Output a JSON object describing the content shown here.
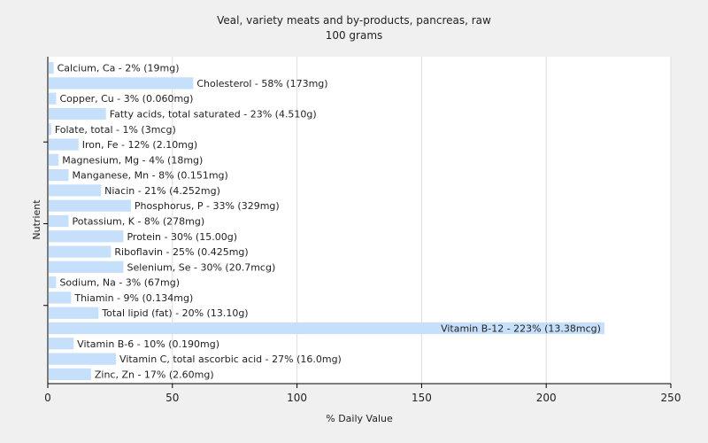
{
  "chart_data": {
    "type": "bar",
    "orientation": "horizontal",
    "title": "Veal, variety meats and by-products, pancreas, raw",
    "subtitle": "100 grams",
    "xlabel": "% Daily Value",
    "ylabel": "Nutrient",
    "xlim": [
      0,
      250
    ],
    "xticks": [
      0,
      50,
      100,
      150,
      200,
      250
    ],
    "grid": true,
    "bar_color": "#c6e0fb",
    "categories": [
      "Calcium, Ca - 2% (19mg)",
      "Cholesterol - 58% (173mg)",
      "Copper, Cu - 3% (0.060mg)",
      "Fatty acids, total saturated - 23% (4.510g)",
      "Folate, total - 1% (3mcg)",
      "Iron, Fe - 12% (2.10mg)",
      "Magnesium, Mg - 4% (18mg)",
      "Manganese, Mn - 8% (0.151mg)",
      "Niacin - 21% (4.252mg)",
      "Phosphorus, P - 33% (329mg)",
      "Potassium, K - 8% (278mg)",
      "Protein - 30% (15.00g)",
      "Riboflavin - 25% (0.425mg)",
      "Selenium, Se - 30% (20.7mcg)",
      "Sodium, Na - 3% (67mg)",
      "Thiamin - 9% (0.134mg)",
      "Total lipid (fat) - 20% (13.10g)",
      "Vitamin B-12 - 223% (13.38mcg)",
      "Vitamin B-6 - 10% (0.190mg)",
      "Vitamin C, total ascorbic acid - 27% (16.0mg)",
      "Zinc, Zn - 17% (2.60mg)"
    ],
    "values": [
      2,
      58,
      3,
      23,
      1,
      12,
      4,
      8,
      21,
      33,
      8,
      30,
      25,
      30,
      3,
      9,
      20,
      223,
      10,
      27,
      17
    ]
  }
}
